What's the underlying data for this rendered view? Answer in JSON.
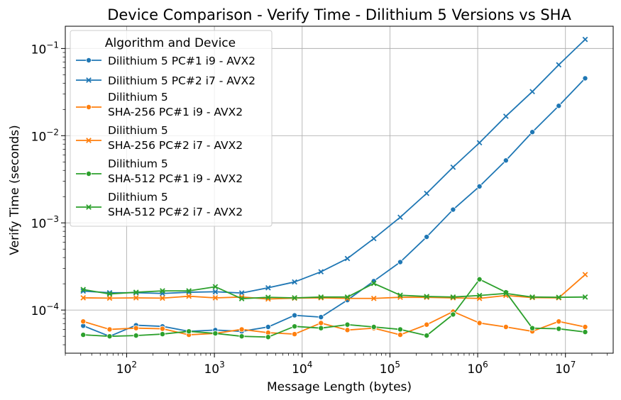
{
  "chart_data": {
    "type": "line",
    "title": "Device Comparison - Verify Time - Dilithium 5 Versions vs SHA",
    "xlabel": "Message Length (bytes)",
    "ylabel": "Verify Time (seconds)",
    "xscale": "log",
    "yscale": "log",
    "xlim": [
      20,
      35000000
    ],
    "ylim": [
      3.2e-05,
      0.18
    ],
    "grid": true,
    "legend": {
      "title": "Algorithm and Device",
      "location": "upper-left"
    },
    "x": [
      32,
      64,
      128,
      256,
      512,
      1024,
      2048,
      4096,
      8192,
      16384,
      32768,
      65536,
      131072,
      262144,
      524288,
      1048576,
      2097152,
      4194304,
      8388608,
      16777216
    ],
    "xticks": [
      {
        "value": 100,
        "base": "10",
        "exp": "2"
      },
      {
        "value": 1000,
        "base": "10",
        "exp": "3"
      },
      {
        "value": 10000,
        "base": "10",
        "exp": "4"
      },
      {
        "value": 100000,
        "base": "10",
        "exp": "5"
      },
      {
        "value": 1000000,
        "base": "10",
        "exp": "6"
      },
      {
        "value": 10000000,
        "base": "10",
        "exp": "7"
      }
    ],
    "yticks": [
      {
        "value": 0.0001,
        "base": "10",
        "exp": "−4"
      },
      {
        "value": 0.001,
        "base": "10",
        "exp": "−3"
      },
      {
        "value": 0.01,
        "base": "10",
        "exp": "−2"
      },
      {
        "value": 0.1,
        "base": "10",
        "exp": "−1"
      }
    ],
    "series": [
      {
        "name": "Dilithium 5 PC#1 i9 - AVX2",
        "color": "#1f77b4",
        "marker": "circle",
        "values": [
          6.6e-05,
          5e-05,
          6.7e-05,
          6.5e-05,
          5.7e-05,
          5.9e-05,
          5.7e-05,
          6.4e-05,
          8.7e-05,
          8.3e-05,
          0.00013,
          0.000215,
          0.000355,
          0.00069,
          0.00142,
          0.00262,
          0.0052,
          0.011,
          0.022,
          0.0455
        ]
      },
      {
        "name": "Dilithium 5 PC#2 i7 - AVX2",
        "color": "#1f77b4",
        "marker": "x",
        "values": [
          0.000165,
          0.000158,
          0.000158,
          0.000155,
          0.00016,
          0.000162,
          0.000157,
          0.00018,
          0.00021,
          0.000275,
          0.00039,
          0.00066,
          0.00116,
          0.00218,
          0.00435,
          0.0083,
          0.0167,
          0.032,
          0.065,
          0.127
        ]
      },
      {
        "name": "Dilithium 5\nSHA-256 PC#1 i9 - AVX2",
        "color": "#ff7f0e",
        "marker": "circle",
        "values": [
          7.4e-05,
          6e-05,
          6.2e-05,
          6.1e-05,
          5.2e-05,
          5.4e-05,
          6e-05,
          5.5e-05,
          5.3e-05,
          7.1e-05,
          5.9e-05,
          6.2e-05,
          5.2e-05,
          6.8e-05,
          9.6e-05,
          7.1e-05,
          6.4e-05,
          5.7e-05,
          7.4e-05,
          6.4e-05
        ]
      },
      {
        "name": "Dilithium 5\nSHA-256 PC#2 i7 - AVX2",
        "color": "#ff7f0e",
        "marker": "x",
        "values": [
          0.000138,
          0.000137,
          0.000138,
          0.000137,
          0.000144,
          0.000138,
          0.000141,
          0.000134,
          0.000137,
          0.000138,
          0.000136,
          0.000136,
          0.00014,
          0.00014,
          0.000138,
          0.000136,
          0.000147,
          0.000139,
          0.000138,
          0.000255
        ]
      },
      {
        "name": "Dilithium 5\nSHA-512 PC#1 i9 - AVX2",
        "color": "#2ca02c",
        "marker": "circle",
        "values": [
          5.2e-05,
          5e-05,
          5.1e-05,
          5.3e-05,
          5.7e-05,
          5.4e-05,
          5e-05,
          4.9e-05,
          6.5e-05,
          6.2e-05,
          6.8e-05,
          6.4e-05,
          6e-05,
          5.1e-05,
          8.9e-05,
          0.000225,
          0.00016,
          6.2e-05,
          6.1e-05,
          5.6e-05
        ]
      },
      {
        "name": "Dilithium 5\nSHA-512 PC#2 i7 - AVX2",
        "color": "#2ca02c",
        "marker": "x",
        "values": [
          0.000172,
          0.000153,
          0.00016,
          0.000166,
          0.000166,
          0.000185,
          0.000135,
          0.00014,
          0.000138,
          0.000141,
          0.000141,
          0.000202,
          0.000148,
          0.000143,
          0.000141,
          0.000147,
          0.000155,
          0.000141,
          0.00014,
          0.000141
        ]
      }
    ]
  }
}
